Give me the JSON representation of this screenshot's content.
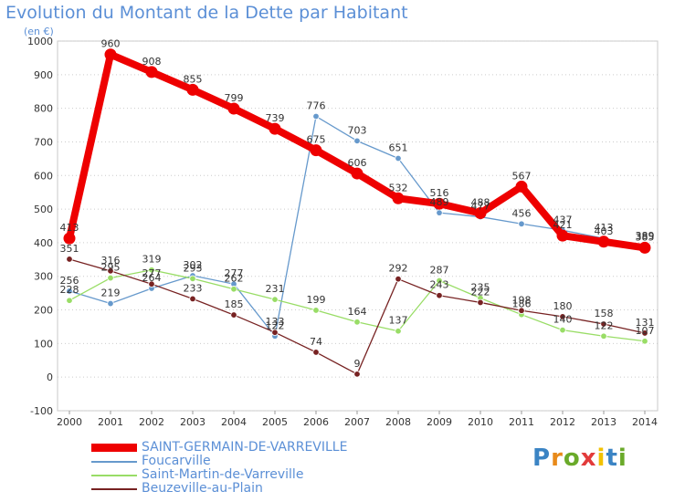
{
  "chart_data": {
    "type": "line",
    "title": "Evolution du Montant de la Dette par Habitant",
    "subtitle": "(en €)",
    "x": [
      "2000",
      "2001",
      "2002",
      "2003",
      "2004",
      "2005",
      "2006",
      "2007",
      "2008",
      "2009",
      "2010",
      "2011",
      "2012",
      "2013",
      "2014"
    ],
    "y_ticks": [
      "-100",
      "0",
      "100",
      "200",
      "300",
      "400",
      "500",
      "600",
      "700",
      "800",
      "900",
      "1000"
    ],
    "ylim": [
      -100,
      1000
    ],
    "grid": "horizontal-dotted",
    "legend_position": "bottom-left",
    "series": [
      {
        "name": "SAINT-GERMAIN-DE-VARREVILLE",
        "color": "#ee0000",
        "values": [
          413,
          960,
          908,
          855,
          799,
          739,
          675,
          606,
          532,
          516,
          488,
          567,
          421,
          403,
          385
        ],
        "labels": [
          "413",
          "960",
          "908",
          "855",
          "799",
          "739",
          "675",
          "606",
          "532",
          "516",
          "488",
          "567",
          "421",
          "403",
          "385"
        ]
      },
      {
        "name": "Foucarville",
        "color": "#6699cc",
        "values": [
          256,
          219,
          264,
          302,
          277,
          122,
          776,
          703,
          651,
          489,
          477,
          456,
          437,
          413,
          389
        ],
        "labels": [
          "256",
          "219",
          "264",
          "302",
          "277",
          "122",
          "776",
          "703",
          "651",
          "489",
          "477",
          "456",
          "437",
          "413",
          "389"
        ]
      },
      {
        "name": "Saint-Martin-de-Varreville",
        "color": "#99dd66",
        "values": [
          228,
          295,
          319,
          293,
          262,
          231,
          199,
          164,
          137,
          287,
          235,
          186,
          140,
          122,
          107
        ],
        "labels": [
          "228",
          "295",
          "319",
          "293",
          "262",
          "231",
          "199",
          "164",
          "137",
          "287",
          "235",
          "186",
          "140",
          "122",
          "107"
        ]
      },
      {
        "name": "Beuzeville-au-Plain",
        "color": "#772222",
        "values": [
          351,
          316,
          277,
          233,
          185,
          133,
          74,
          9,
          292,
          243,
          222,
          198,
          180,
          158,
          131
        ],
        "labels": [
          "351",
          "316",
          "277",
          "233",
          "185",
          "133",
          "74",
          "9",
          "292",
          "243",
          "222",
          "198",
          "180",
          "158",
          "131"
        ]
      }
    ]
  },
  "brand": {
    "logo_letters": [
      "P",
      "r",
      "o",
      "x",
      "i",
      "t",
      "i"
    ],
    "logo_colors": [
      "#3b84c4",
      "#e88a1a",
      "#6aaa2a",
      "#e23b3b",
      "#f2c200",
      "#3b84c4",
      "#6aaa2a"
    ]
  }
}
